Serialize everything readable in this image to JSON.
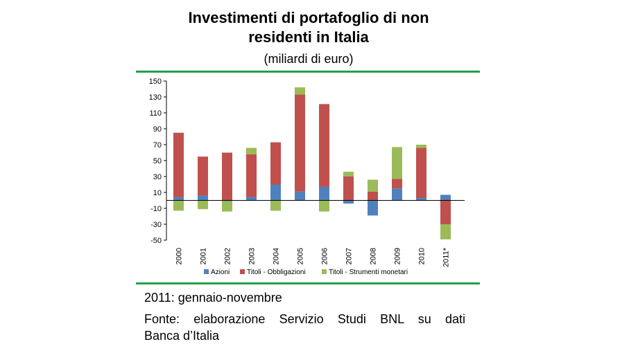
{
  "title_line1": "Investimenti di portafoglio di non",
  "title_line2": "residenti in Italia",
  "subtitle": "(miliardi di euro)",
  "accent_color": "#21a04a",
  "note": "2011: gennaio-novembre",
  "source_line1": "Fonte: elaborazione Servizio Studi BNL su dati",
  "source_line2": "Banca d’Italia",
  "chart_data": {
    "type": "bar",
    "stacked": true,
    "categories": [
      "2000",
      "2001",
      "2002",
      "2003",
      "2004",
      "2005",
      "2006",
      "2007",
      "2008",
      "2009",
      "2010",
      "2011*"
    ],
    "series": [
      {
        "name": "Azioni",
        "color": "#4f81bd",
        "values": [
          4,
          6,
          -1,
          4,
          20,
          11,
          17,
          -4,
          -19,
          15,
          3,
          7
        ]
      },
      {
        "name": "Titoli - Obbligazioni",
        "color": "#c0504d",
        "values": [
          81,
          49,
          60,
          54,
          53,
          122,
          104,
          30,
          11,
          12,
          63,
          -30
        ]
      },
      {
        "name": "Titoli - Strumenti monetari",
        "color": "#9bbb59",
        "values": [
          -13,
          -11,
          -13,
          8,
          -13,
          9,
          -14,
          6,
          15,
          40,
          4,
          -19
        ]
      }
    ],
    "y_ticks": [
      150,
      130,
      110,
      90,
      70,
      50,
      30,
      10,
      -10,
      -30,
      -50
    ],
    "ylim": [
      -50,
      150
    ],
    "legend_position": "bottom",
    "grid": false
  }
}
